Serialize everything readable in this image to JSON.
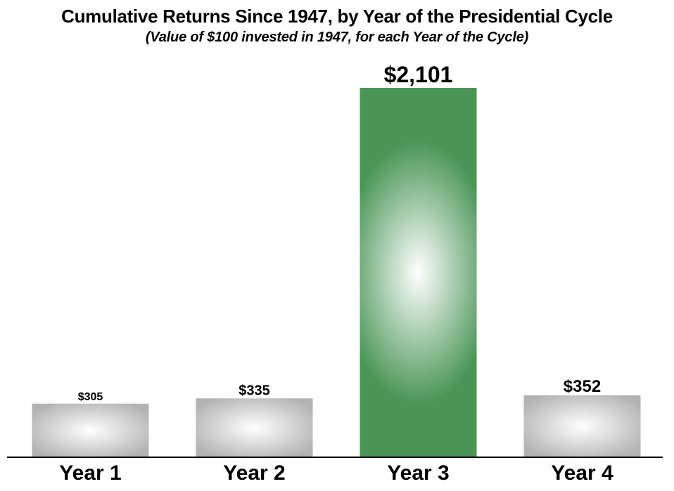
{
  "title": "Cumulative Returns Since 1947, by Year of the Presidential Cycle",
  "subtitle": "(Value of $100 invested in 1947, for each Year of the Cycle)",
  "chart_data": {
    "type": "bar",
    "title": "Cumulative Returns Since 1947, by Year of the Presidential Cycle",
    "subtitle": "(Value of $100 invested in 1947, for each Year of the Cycle)",
    "categories": [
      "Year 1",
      "Year 2",
      "Year 3",
      "Year 4"
    ],
    "values": [
      305,
      335,
      2101,
      352
    ],
    "data_labels": [
      "$305",
      "$335",
      "$2,101",
      "$352"
    ],
    "highlight_index": 2,
    "colors": {
      "default_bar": "#b8b8b8",
      "highlight_bar": "#4f9a5c",
      "axis": "#000000"
    },
    "ylim": [
      0,
      2101
    ],
    "xlabel": "",
    "ylabel": "",
    "grid": false,
    "legend": "none"
  }
}
